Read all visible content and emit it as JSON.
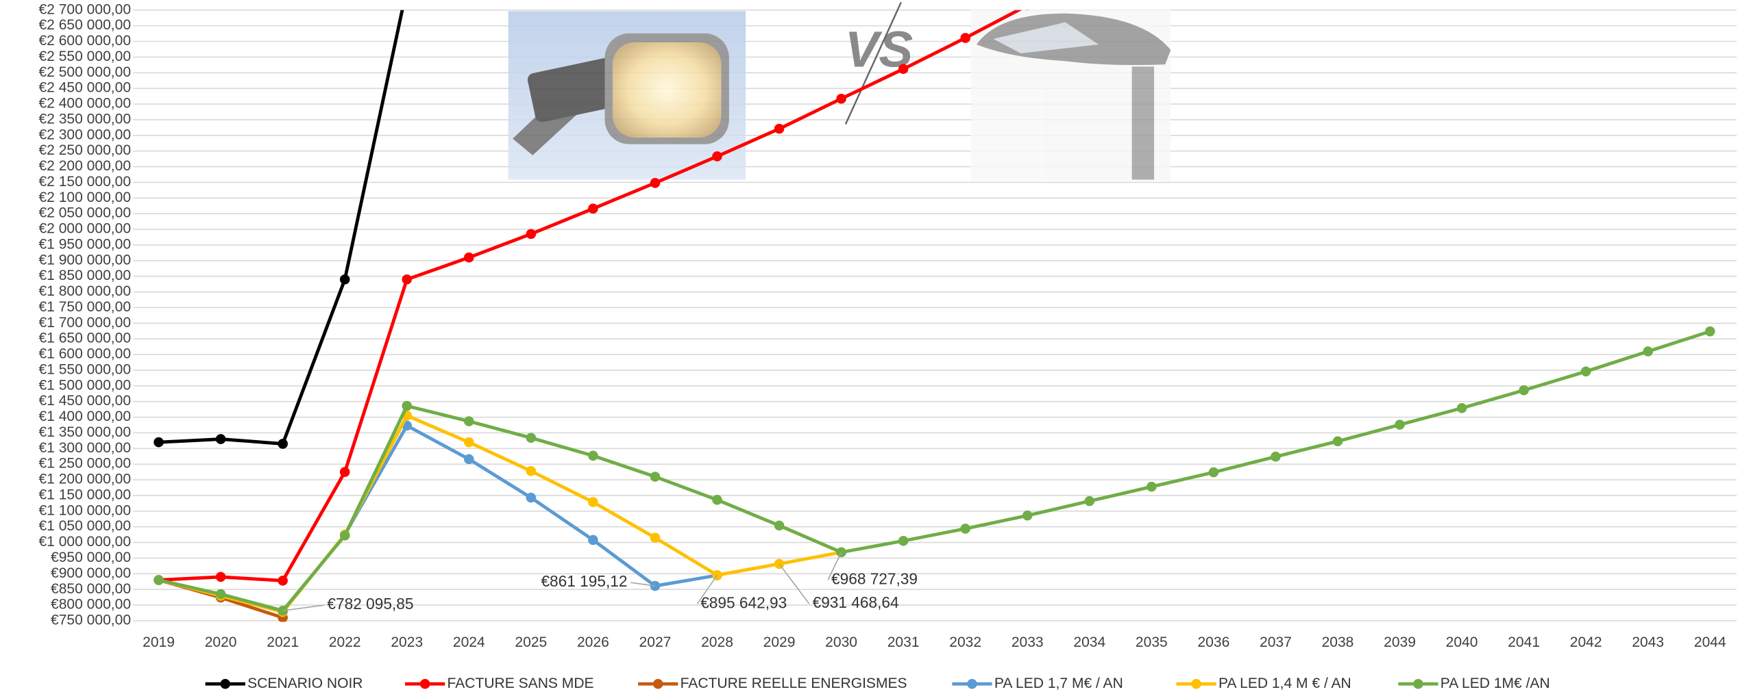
{
  "chart_data": {
    "type": "line",
    "vs_text": "VS",
    "categories": [
      "2019",
      "2020",
      "2021",
      "2022",
      "2023",
      "2024",
      "2025",
      "2026",
      "2027",
      "2028",
      "2029",
      "2030",
      "2031",
      "2032",
      "2033",
      "2034",
      "2035",
      "2036",
      "2037",
      "2038",
      "2039",
      "2040",
      "2041",
      "2042",
      "2043",
      "2044"
    ],
    "ylim": [
      750000,
      2700000
    ],
    "yticks": [
      {
        "value": 750000,
        "label": "€750 000,00"
      },
      {
        "value": 800000,
        "label": "€800 000,00"
      },
      {
        "value": 850000,
        "label": "€850 000,00"
      },
      {
        "value": 900000,
        "label": "€900 000,00"
      },
      {
        "value": 950000,
        "label": "€950 000,00"
      },
      {
        "value": 1000000,
        "label": "€1 000 000,00"
      },
      {
        "value": 1050000,
        "label": "€1 050 000,00"
      },
      {
        "value": 1100000,
        "label": "€1 100 000,00"
      },
      {
        "value": 1150000,
        "label": "€1 150 000,00"
      },
      {
        "value": 1200000,
        "label": "€1 200 000,00"
      },
      {
        "value": 1250000,
        "label": "€1 250 000,00"
      },
      {
        "value": 1300000,
        "label": "€1 300 000,00"
      },
      {
        "value": 1350000,
        "label": "€1 350 000,00"
      },
      {
        "value": 1400000,
        "label": "€1 400 000,00"
      },
      {
        "value": 1450000,
        "label": "€1 450 000,00"
      },
      {
        "value": 1500000,
        "label": "€1 500 000,00"
      },
      {
        "value": 1550000,
        "label": "€1 550 000,00"
      },
      {
        "value": 1600000,
        "label": "€1 600 000,00"
      },
      {
        "value": 1650000,
        "label": "€1 650 000,00"
      },
      {
        "value": 1700000,
        "label": "€1 700 000,00"
      },
      {
        "value": 1750000,
        "label": "€1 750 000,00"
      },
      {
        "value": 1800000,
        "label": "€1 800 000,00"
      },
      {
        "value": 1850000,
        "label": "€1 850 000,00"
      },
      {
        "value": 1900000,
        "label": "€1 900 000,00"
      },
      {
        "value": 1950000,
        "label": "€1 950 000,00"
      },
      {
        "value": 2000000,
        "label": "€2 000 000,00"
      },
      {
        "value": 2050000,
        "label": "€2 050 000,00"
      },
      {
        "value": 2100000,
        "label": "€2 100 000,00"
      },
      {
        "value": 2150000,
        "label": "€2 150 000,00"
      },
      {
        "value": 2200000,
        "label": "€2 200 000,00"
      },
      {
        "value": 2250000,
        "label": "€2 250 000,00"
      },
      {
        "value": 2300000,
        "label": "€2 300 000,00"
      },
      {
        "value": 2350000,
        "label": "€2 350 000,00"
      },
      {
        "value": 2400000,
        "label": "€2 400 000,00"
      },
      {
        "value": 2450000,
        "label": "€2 450 000,00"
      },
      {
        "value": 2500000,
        "label": "€2 500 000,00"
      },
      {
        "value": 2550000,
        "label": "€2 550 000,00"
      },
      {
        "value": 2600000,
        "label": "€2 600 000,00"
      },
      {
        "value": 2650000,
        "label": "€2 650 000,00"
      },
      {
        "value": 2700000,
        "label": "€2 700 000,00"
      }
    ],
    "grid": true,
    "legend": "bottom",
    "series": [
      {
        "name": "SCENARIO NOIR",
        "color": "#000000",
        "values": [
          1320000,
          1330000,
          1315000,
          1840000,
          2770000,
          null,
          null,
          null,
          null,
          null,
          null,
          null,
          null,
          null,
          null,
          null,
          null,
          null,
          null,
          null,
          null,
          null,
          null,
          null,
          null,
          null
        ]
      },
      {
        "name": "FACTURE SANS MDE",
        "color": "#ff0000",
        "values": [
          880000,
          890000,
          878000,
          1225000,
          1840000,
          1910000,
          1985000,
          2066000,
          2148000,
          2233000,
          2321000,
          2417000,
          2512000,
          2611000,
          2715000,
          null,
          null,
          null,
          null,
          null,
          null,
          null,
          null,
          null,
          null,
          null
        ]
      },
      {
        "name": "FACTURE REELLE ENERGISMES",
        "color": "#c55a11",
        "values": [
          880000,
          824000,
          760000,
          null,
          null,
          null,
          null,
          null,
          null,
          null,
          null,
          null,
          null,
          null,
          null,
          null,
          null,
          null,
          null,
          null,
          null,
          null,
          null,
          null,
          null,
          null
        ]
      },
      {
        "name": "PA LED 1,7 M€ / AN",
        "color": "#5b9bd5",
        "values": [
          880000,
          832000,
          778000,
          1025000,
          1373000,
          1266000,
          1143000,
          1008000,
          861195.12,
          895000,
          null,
          null,
          null,
          null,
          null,
          null,
          null,
          null,
          null,
          null,
          null,
          null,
          null,
          null,
          null,
          null
        ],
        "value_labels": [
          null,
          null,
          null,
          null,
          null,
          null,
          null,
          null,
          "€861 195,12",
          null,
          null,
          null,
          null,
          null,
          null,
          null,
          null,
          null,
          null,
          null,
          null,
          null,
          null,
          null,
          null,
          null
        ]
      },
      {
        "name": "PA LED 1,4 M € / AN",
        "color": "#ffc000",
        "values": [
          880000,
          830000,
          778000,
          1025000,
          1405000,
          1320000,
          1228000,
          1129000,
          1015000,
          895642.93,
          931468.64,
          968727.39,
          null,
          null,
          null,
          null,
          null,
          null,
          null,
          null,
          null,
          null,
          null,
          null,
          null,
          null
        ],
        "value_labels": [
          null,
          null,
          null,
          null,
          null,
          null,
          null,
          null,
          null,
          "€895 642,93",
          "€931 468,64",
          null,
          null,
          null,
          null,
          null,
          null,
          null,
          null,
          null,
          null,
          null,
          null,
          null,
          null,
          null
        ]
      },
      {
        "name": "PA LED 1M€ /AN",
        "color": "#70ad47",
        "values": [
          880000,
          835000,
          782095.85,
          1022000,
          1436000,
          1387000,
          1334000,
          1277000,
          1210000,
          1136000,
          1054000,
          968727.39,
          1005000,
          1044000,
          1086000,
          1132000,
          1178000,
          1224000,
          1274000,
          1323000,
          1376000,
          1429000,
          1486000,
          1546000,
          1610000,
          1674000
        ],
        "value_labels": [
          null,
          null,
          "€782 095,85",
          null,
          null,
          null,
          null,
          null,
          null,
          null,
          null,
          "€968 727,39",
          null,
          null,
          null,
          null,
          null,
          null,
          null,
          null,
          null,
          null,
          null,
          null,
          null,
          null
        ]
      }
    ]
  }
}
